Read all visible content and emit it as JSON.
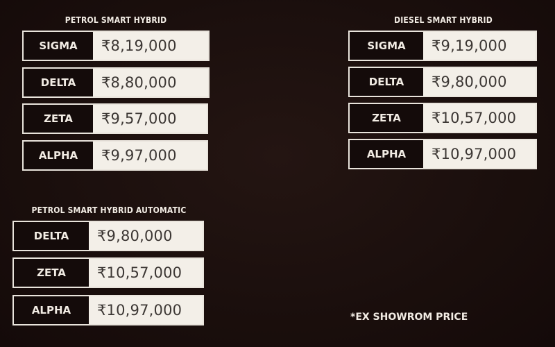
{
  "groups": [
    {
      "title": "PETROL SMART HYBRID",
      "rows": [
        {
          "variant": "SIGMA",
          "price": "₹8,19,000"
        },
        {
          "variant": "DELTA",
          "price": "₹8,80,000"
        },
        {
          "variant": "ZETA",
          "price": "₹9,57,000"
        },
        {
          "variant": "ALPHA",
          "price": "₹9,97,000"
        }
      ]
    },
    {
      "title": "DIESEL SMART HYBRID",
      "rows": [
        {
          "variant": "SIGMA",
          "price": "₹9,19,000"
        },
        {
          "variant": "DELTA",
          "price": "₹9,80,000"
        },
        {
          "variant": "ZETA",
          "price": "₹10,57,000"
        },
        {
          "variant": "ALPHA",
          "price": "₹10,97,000"
        }
      ]
    },
    {
      "title": "PETROL SMART HYBRID AUTOMATIC",
      "rows": [
        {
          "variant": "DELTA",
          "price": "₹9,80,000"
        },
        {
          "variant": "ZETA",
          "price": "₹10,57,000"
        },
        {
          "variant": "ALPHA",
          "price": "₹10,97,000"
        }
      ]
    }
  ],
  "footnote": "*EX SHOWROM PRICE"
}
